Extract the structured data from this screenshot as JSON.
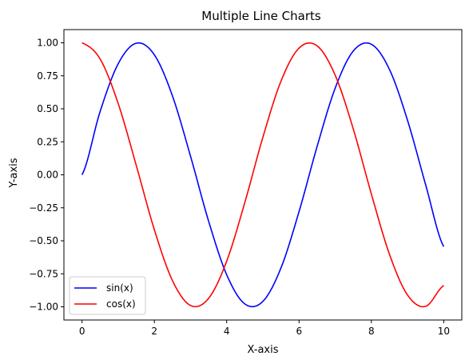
{
  "chart_data": {
    "type": "line",
    "title": "Multiple Line Charts",
    "xlabel": "X-axis",
    "ylabel": "Y-axis",
    "xlim": [
      -0.5,
      10.5
    ],
    "ylim": [
      -1.1,
      1.1
    ],
    "x_ticks": [
      0,
      2,
      4,
      6,
      8,
      10
    ],
    "x_tick_labels": [
      "0",
      "2",
      "4",
      "6",
      "8",
      "10"
    ],
    "y_ticks": [
      -1.0,
      -0.75,
      -0.5,
      -0.25,
      0.0,
      0.25,
      0.5,
      0.75,
      1.0
    ],
    "y_tick_labels": [
      "−1.00",
      "−0.75",
      "−0.50",
      "−0.25",
      "0.00",
      "0.25",
      "0.50",
      "0.75",
      "1.00"
    ],
    "grid": false,
    "legend_position": "lower-left",
    "x": [
      0,
      0.5,
      1,
      1.5,
      2,
      2.5,
      3,
      3.5,
      4,
      4.5,
      5,
      5.5,
      6,
      6.5,
      7,
      7.5,
      8,
      8.5,
      9,
      9.5,
      10
    ],
    "series": [
      {
        "name": "sin(x)",
        "color": "#0000ff",
        "values": [
          0.0,
          0.479,
          0.841,
          0.997,
          0.909,
          0.598,
          0.141,
          -0.351,
          -0.757,
          -0.978,
          -0.959,
          -0.706,
          -0.279,
          0.215,
          0.657,
          0.938,
          0.989,
          0.798,
          0.412,
          -0.075,
          -0.544
        ]
      },
      {
        "name": "cos(x)",
        "color": "#ff0000",
        "values": [
          1.0,
          0.878,
          0.54,
          0.071,
          -0.416,
          -0.801,
          -0.99,
          -0.936,
          -0.654,
          -0.211,
          0.284,
          0.709,
          0.96,
          0.977,
          0.754,
          0.347,
          -0.146,
          -0.602,
          -0.911,
          -0.997,
          -0.839
        ]
      }
    ]
  }
}
